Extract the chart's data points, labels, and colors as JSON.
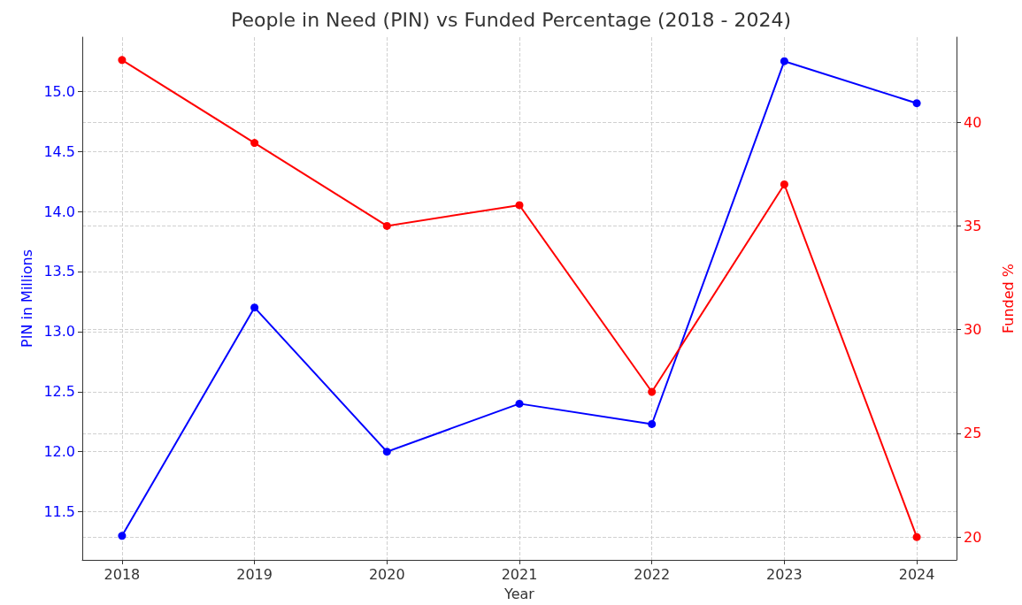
{
  "chart_data": {
    "type": "line",
    "title": "People in Need (PIN) vs Funded Percentage (2018 - 2024)",
    "xlabel": "Year",
    "ylabel": "PIN in Millions",
    "y2label": "Funded %",
    "x": [
      2018,
      2019,
      2020,
      2021,
      2022,
      2023,
      2024
    ],
    "xlim": [
      2017.7,
      2024.3
    ],
    "xticks": [
      2018,
      2019,
      2020,
      2021,
      2022,
      2023,
      2024
    ],
    "ylim": [
      11.1,
      15.45
    ],
    "yticks": [
      {
        "value": 11.5,
        "label": "11.5"
      },
      {
        "value": 12,
        "label": "12.0"
      },
      {
        "value": 12.5,
        "label": "12.5"
      },
      {
        "value": 13,
        "label": "13.0"
      },
      {
        "value": 13.5,
        "label": "13.5"
      },
      {
        "value": 14,
        "label": "14.0"
      },
      {
        "value": 14.5,
        "label": "14.5"
      },
      {
        "value": 15,
        "label": "15.0"
      }
    ],
    "y2lim": [
      18.9,
      44.1
    ],
    "y2ticks": [
      20,
      25,
      30,
      35,
      40
    ],
    "series": [
      {
        "color": "#0000ff",
        "values": [
          11.3,
          13.2,
          12.0,
          12.4,
          12.23,
          15.25,
          14.9
        ]
      },
      {
        "color": "#ff0000",
        "axis": "y2",
        "values": [
          43,
          39,
          35,
          36,
          27,
          37,
          20
        ]
      }
    ],
    "grid": true,
    "marker": "circle",
    "line_style": "solid"
  }
}
